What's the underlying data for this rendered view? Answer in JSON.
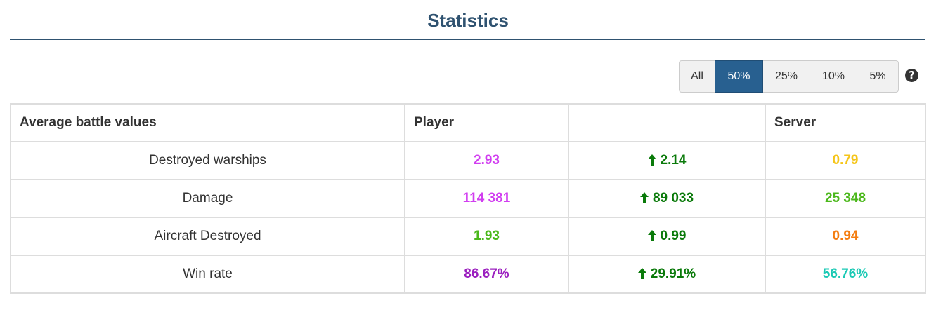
{
  "header": {
    "title": "Statistics"
  },
  "filters": {
    "options": [
      "All",
      "50%",
      "25%",
      "10%",
      "5%"
    ],
    "selected": "50%"
  },
  "help_icon": "question-circle",
  "table": {
    "headers": [
      "Average battle values",
      "Player",
      "",
      "Server"
    ],
    "rows": [
      {
        "label": "Destroyed warships",
        "player": "2.93",
        "player_color": "#d13ef0",
        "diff": "2.14",
        "diff_color": "#0a7a0a",
        "server": "0.79",
        "server_color": "#f5c518"
      },
      {
        "label": "Damage",
        "player": "114 381",
        "player_color": "#d13ef0",
        "diff": "89 033",
        "diff_color": "#0a7a0a",
        "server": "25 348",
        "server_color": "#4bb81b"
      },
      {
        "label": "Aircraft Destroyed",
        "player": "1.93",
        "player_color": "#4bb81b",
        "diff": "0.99",
        "diff_color": "#0a7a0a",
        "server": "0.94",
        "server_color": "#f47d10"
      },
      {
        "label": "Win rate",
        "player": "86.67%",
        "player_color": "#9b1fbf",
        "diff": "29.91%",
        "diff_color": "#0a7a0a",
        "server": "56.76%",
        "server_color": "#19c9b4"
      }
    ]
  },
  "colors": {
    "accent": "#2f5270",
    "active_button": "#286090"
  }
}
